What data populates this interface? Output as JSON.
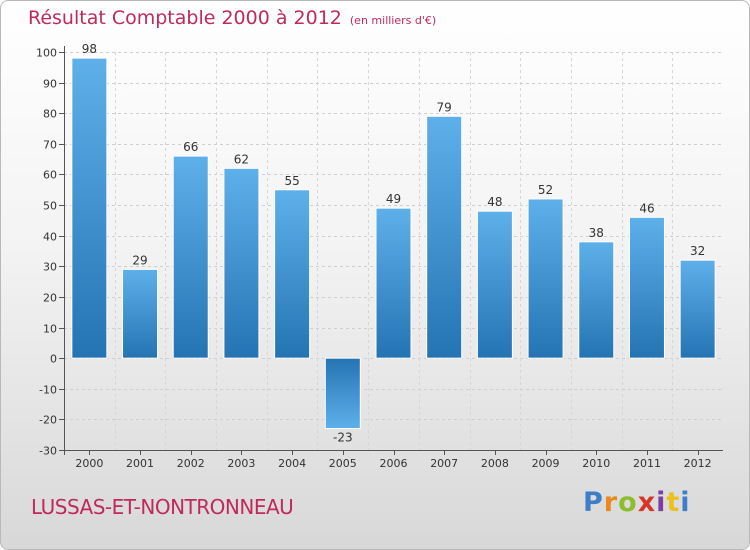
{
  "header": {
    "title": "Résultat Comptable 2000 à 2012",
    "unit": "(en milliers d'€)"
  },
  "footer": {
    "city": "LUSSAS-ET-NONTRONNEAU",
    "logo": {
      "letters": [
        "P",
        "r",
        "o",
        "x",
        "i",
        "t",
        "i"
      ],
      "colors": [
        "#3d7fc6",
        "#e9891f",
        "#8cbd2c",
        "#d8352a",
        "#7c3fa0",
        "#e9c21f",
        "#3d7fc6"
      ]
    }
  },
  "colors": {
    "bar_light": "#5eb0ea",
    "bar_dark": "#2474b3",
    "title": "#c02a5a"
  },
  "chart_data": {
    "type": "bar",
    "title": "Résultat Comptable 2000 à 2012",
    "subtitle": "(en milliers d'€)",
    "xlabel": "",
    "ylabel": "",
    "ylim": [
      -30,
      100
    ],
    "yticks": [
      -30,
      -20,
      -10,
      0,
      10,
      20,
      30,
      40,
      50,
      60,
      70,
      80,
      90,
      100
    ],
    "grid": true,
    "categories": [
      "2000",
      "2001",
      "2002",
      "2003",
      "2004",
      "2005",
      "2006",
      "2007",
      "2008",
      "2009",
      "2010",
      "2011",
      "2012"
    ],
    "values": [
      98,
      29,
      66,
      62,
      55,
      -23,
      49,
      79,
      48,
      52,
      38,
      46,
      32
    ]
  }
}
